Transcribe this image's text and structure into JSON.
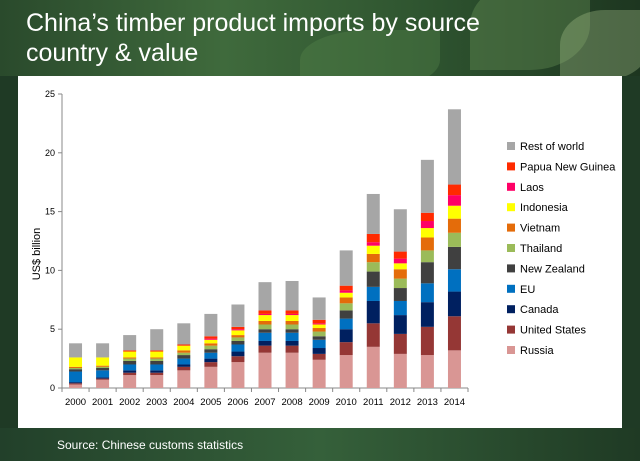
{
  "title": "China’s timber product imports by source country & value",
  "title_lines": [
    "China’s timber product imports by source",
    "country & value"
  ],
  "source": "Source: Chinese customs statistics",
  "chart_data": {
    "type": "bar",
    "stacked": true,
    "ylabel": "US$ billion",
    "ylim": [
      0,
      25
    ],
    "yticks": [
      0,
      5,
      10,
      15,
      20,
      25
    ],
    "grid": false,
    "legend_position": "right",
    "categories": [
      "2000",
      "2001",
      "2002",
      "2003",
      "2004",
      "2005",
      "2006",
      "2007",
      "2008",
      "2009",
      "2010",
      "2011",
      "2012",
      "2013",
      "2014"
    ],
    "series": [
      {
        "name": "Russia",
        "color": "#d99694",
        "values": [
          0.3,
          0.7,
          1.1,
          1.1,
          1.5,
          1.8,
          2.2,
          3.0,
          3.0,
          2.4,
          2.8,
          3.5,
          2.9,
          2.8,
          3.2
        ]
      },
      {
        "name": "United States",
        "color": "#953735",
        "values": [
          0.1,
          0.1,
          0.2,
          0.2,
          0.3,
          0.4,
          0.5,
          0.6,
          0.6,
          0.5,
          1.1,
          2.0,
          1.7,
          2.4,
          2.9
        ]
      },
      {
        "name": "Canada",
        "color": "#002060",
        "values": [
          0.1,
          0.1,
          0.2,
          0.2,
          0.2,
          0.3,
          0.4,
          0.4,
          0.4,
          0.5,
          1.1,
          1.9,
          1.6,
          2.1,
          2.1
        ]
      },
      {
        "name": "EU",
        "color": "#0070c0",
        "values": [
          0.9,
          0.6,
          0.5,
          0.5,
          0.5,
          0.5,
          0.6,
          0.7,
          0.7,
          0.7,
          0.9,
          1.2,
          1.2,
          1.6,
          1.9
        ]
      },
      {
        "name": "New Zealand",
        "color": "#404040",
        "values": [
          0.2,
          0.2,
          0.3,
          0.3,
          0.3,
          0.3,
          0.3,
          0.3,
          0.3,
          0.3,
          0.7,
          1.3,
          1.1,
          1.8,
          1.9
        ]
      },
      {
        "name": "Thailand",
        "color": "#9bbb59",
        "values": [
          0.1,
          0.1,
          0.2,
          0.2,
          0.2,
          0.3,
          0.3,
          0.4,
          0.4,
          0.4,
          0.6,
          0.8,
          0.8,
          1.0,
          1.2
        ]
      },
      {
        "name": "Vietnam",
        "color": "#e46c0a",
        "values": [
          0.1,
          0.1,
          0.1,
          0.1,
          0.2,
          0.2,
          0.2,
          0.3,
          0.3,
          0.3,
          0.5,
          0.7,
          0.8,
          1.1,
          1.2
        ]
      },
      {
        "name": "Indonesia",
        "color": "#ffff00",
        "values": [
          0.8,
          0.7,
          0.5,
          0.5,
          0.4,
          0.3,
          0.4,
          0.5,
          0.5,
          0.3,
          0.4,
          0.7,
          0.5,
          0.8,
          1.1
        ]
      },
      {
        "name": "Laos",
        "color": "#ff0066",
        "values": [
          0.0,
          0.0,
          0.0,
          0.0,
          0.0,
          0.1,
          0.1,
          0.1,
          0.1,
          0.1,
          0.2,
          0.3,
          0.4,
          0.6,
          0.9
        ]
      },
      {
        "name": "Papua New Guinea",
        "color": "#ff2a00",
        "values": [
          0.0,
          0.0,
          0.1,
          0.1,
          0.1,
          0.2,
          0.2,
          0.3,
          0.3,
          0.3,
          0.4,
          0.7,
          0.6,
          0.7,
          0.9
        ]
      },
      {
        "name": "Rest of world",
        "color": "#a6a6a6",
        "values": [
          1.2,
          1.2,
          1.3,
          1.8,
          1.8,
          1.9,
          1.9,
          2.4,
          2.5,
          1.9,
          3.0,
          3.4,
          3.6,
          4.5,
          6.4
        ]
      }
    ]
  }
}
